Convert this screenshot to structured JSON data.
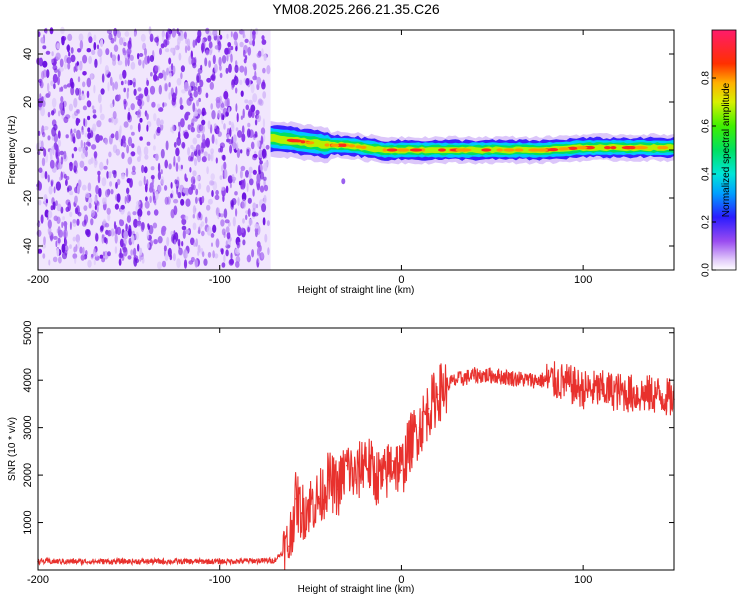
{
  "title": "YM08.2025.266.21.35.C26",
  "colors": {
    "snr_line": "#e8312d",
    "noise_purple": "#7a1ee6",
    "frame": "#000000"
  },
  "chart_data": [
    {
      "type": "heatmap",
      "name": "spectrogram",
      "title": "YM08.2025.266.21.35.C26",
      "xlabel": "Height of straight line (km)",
      "ylabel": "Frequency (Hz)",
      "xlim": [
        -200,
        150
      ],
      "ylim": [
        -50,
        50
      ],
      "x_ticks": [
        -200,
        -100,
        0,
        100
      ],
      "x_tick_labels": [
        "-200",
        "-100",
        "0",
        "100"
      ],
      "y_ticks": [
        -40,
        -20,
        0,
        20,
        40
      ],
      "y_tick_labels": [
        "-40",
        "-20",
        "0",
        "20",
        "40"
      ],
      "noise_region_x": [
        -200,
        -72
      ],
      "signal_trace_x": [
        -72,
        150
      ],
      "signal_trace_freq": [
        [
          -72,
          5
        ],
        [
          -60,
          4
        ],
        [
          -50,
          3
        ],
        [
          -40,
          2
        ],
        [
          -30,
          2
        ],
        [
          -20,
          1
        ],
        [
          -10,
          0
        ],
        [
          0,
          0
        ],
        [
          20,
          0
        ],
        [
          40,
          0
        ],
        [
          60,
          0
        ],
        [
          80,
          0
        ],
        [
          100,
          1
        ],
        [
          120,
          1
        ],
        [
          140,
          1
        ],
        [
          150,
          1
        ]
      ],
      "colorbar": {
        "label": "Normalized spectral amplitude",
        "range": [
          0,
          1
        ],
        "ticks": [
          0.0,
          0.2,
          0.4,
          0.6,
          0.8
        ],
        "tick_labels": [
          "0.0",
          "0.2",
          "0.4",
          "0.6",
          "0.8"
        ]
      }
    },
    {
      "type": "line",
      "name": "snr",
      "xlabel": "Height of straight line (km)",
      "ylabel": "SNR (10 * v/v)",
      "xlim": [
        -200,
        150
      ],
      "ylim": [
        0,
        5100
      ],
      "x_ticks": [
        -200,
        -100,
        0,
        100
      ],
      "x_tick_labels": [
        "-200",
        "-100",
        "0",
        "100"
      ],
      "y_ticks": [
        1000,
        2000,
        3000,
        4000,
        5000
      ],
      "y_tick_labels": [
        "1000",
        "2000",
        "3000",
        "4000",
        "5000"
      ],
      "x": [
        -200,
        -150,
        -100,
        -70,
        -62,
        -58,
        -55,
        -50,
        -45,
        -40,
        -35,
        -30,
        -25,
        -20,
        -15,
        -10,
        -5,
        0,
        5,
        10,
        15,
        20,
        25,
        30,
        35,
        40,
        50,
        60,
        70,
        80,
        90,
        100,
        110,
        120,
        130,
        140,
        150
      ],
      "values": [
        180,
        180,
        180,
        200,
        500,
        1500,
        1200,
        1400,
        1500,
        1900,
        1700,
        2200,
        1900,
        2400,
        2000,
        1900,
        2300,
        2100,
        2700,
        3000,
        3400,
        3700,
        3900,
        4000,
        4050,
        4100,
        4100,
        4050,
        4000,
        4000,
        3950,
        3800,
        3800,
        3750,
        3700,
        3700,
        3600
      ]
    }
  ]
}
